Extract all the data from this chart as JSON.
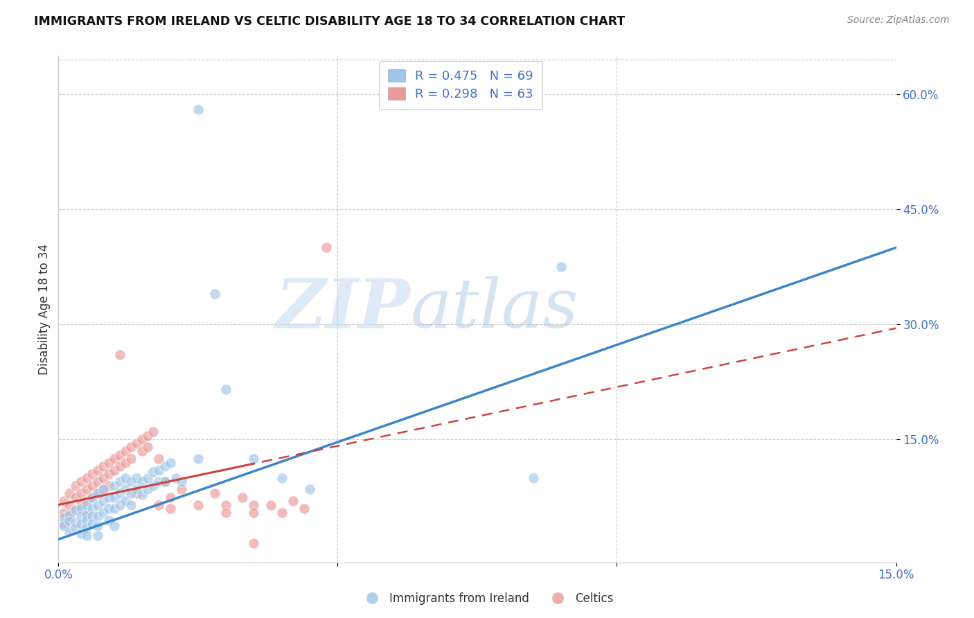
{
  "title": "IMMIGRANTS FROM IRELAND VS CELTIC DISABILITY AGE 18 TO 34 CORRELATION CHART",
  "source": "Source: ZipAtlas.com",
  "ylabel": "Disability Age 18 to 34",
  "xlim": [
    0.0,
    0.15
  ],
  "ylim": [
    -0.01,
    0.65
  ],
  "x_ticks": [
    0.0,
    0.05,
    0.1,
    0.15
  ],
  "x_tick_labels": [
    "0.0%",
    "",
    "",
    "15.0%"
  ],
  "y_ticks": [
    0.15,
    0.3,
    0.45,
    0.6
  ],
  "y_tick_labels": [
    "15.0%",
    "30.0%",
    "45.0%",
    "60.0%"
  ],
  "blue_color": "#9fc5e8",
  "pink_color": "#ea9999",
  "blue_line_color": "#3d85c8",
  "pink_line_color": "#cc4444",
  "r_blue": 0.475,
  "n_blue": 69,
  "r_pink": 0.298,
  "n_pink": 63,
  "legend_label_blue": "Immigrants from Ireland",
  "legend_label_pink": "Celtics",
  "watermark_zip": "ZIP",
  "watermark_atlas": "atlas",
  "blue_line": [
    [
      0.0,
      0.02
    ],
    [
      0.15,
      0.4
    ]
  ],
  "pink_line": [
    [
      0.0,
      0.065
    ],
    [
      0.15,
      0.295
    ]
  ],
  "blue_scatter": [
    [
      0.001,
      0.048
    ],
    [
      0.001,
      0.038
    ],
    [
      0.002,
      0.052
    ],
    [
      0.002,
      0.044
    ],
    [
      0.002,
      0.03
    ],
    [
      0.003,
      0.058
    ],
    [
      0.003,
      0.042
    ],
    [
      0.003,
      0.035
    ],
    [
      0.004,
      0.06
    ],
    [
      0.004,
      0.05
    ],
    [
      0.004,
      0.04
    ],
    [
      0.004,
      0.028
    ],
    [
      0.005,
      0.065
    ],
    [
      0.005,
      0.052
    ],
    [
      0.005,
      0.045
    ],
    [
      0.005,
      0.035
    ],
    [
      0.005,
      0.025
    ],
    [
      0.006,
      0.075
    ],
    [
      0.006,
      0.06
    ],
    [
      0.006,
      0.05
    ],
    [
      0.006,
      0.04
    ],
    [
      0.007,
      0.08
    ],
    [
      0.007,
      0.065
    ],
    [
      0.007,
      0.05
    ],
    [
      0.007,
      0.038
    ],
    [
      0.007,
      0.025
    ],
    [
      0.008,
      0.085
    ],
    [
      0.008,
      0.07
    ],
    [
      0.008,
      0.055
    ],
    [
      0.009,
      0.075
    ],
    [
      0.009,
      0.06
    ],
    [
      0.009,
      0.045
    ],
    [
      0.01,
      0.09
    ],
    [
      0.01,
      0.075
    ],
    [
      0.01,
      0.06
    ],
    [
      0.01,
      0.038
    ],
    [
      0.011,
      0.095
    ],
    [
      0.011,
      0.08
    ],
    [
      0.011,
      0.065
    ],
    [
      0.012,
      0.1
    ],
    [
      0.012,
      0.085
    ],
    [
      0.012,
      0.07
    ],
    [
      0.013,
      0.095
    ],
    [
      0.013,
      0.08
    ],
    [
      0.013,
      0.065
    ],
    [
      0.014,
      0.1
    ],
    [
      0.014,
      0.085
    ],
    [
      0.015,
      0.095
    ],
    [
      0.015,
      0.078
    ],
    [
      0.016,
      0.1
    ],
    [
      0.016,
      0.085
    ],
    [
      0.017,
      0.108
    ],
    [
      0.017,
      0.09
    ],
    [
      0.018,
      0.11
    ],
    [
      0.018,
      0.095
    ],
    [
      0.019,
      0.115
    ],
    [
      0.019,
      0.095
    ],
    [
      0.02,
      0.12
    ],
    [
      0.021,
      0.1
    ],
    [
      0.022,
      0.095
    ],
    [
      0.025,
      0.58
    ],
    [
      0.025,
      0.125
    ],
    [
      0.028,
      0.34
    ],
    [
      0.03,
      0.215
    ],
    [
      0.035,
      0.125
    ],
    [
      0.04,
      0.1
    ],
    [
      0.045,
      0.085
    ],
    [
      0.085,
      0.1
    ],
    [
      0.09,
      0.375
    ]
  ],
  "pink_scatter": [
    [
      0.001,
      0.07
    ],
    [
      0.001,
      0.055
    ],
    [
      0.001,
      0.04
    ],
    [
      0.002,
      0.08
    ],
    [
      0.002,
      0.065
    ],
    [
      0.002,
      0.05
    ],
    [
      0.003,
      0.09
    ],
    [
      0.003,
      0.075
    ],
    [
      0.003,
      0.058
    ],
    [
      0.004,
      0.095
    ],
    [
      0.004,
      0.08
    ],
    [
      0.004,
      0.065
    ],
    [
      0.005,
      0.1
    ],
    [
      0.005,
      0.085
    ],
    [
      0.005,
      0.07
    ],
    [
      0.005,
      0.055
    ],
    [
      0.006,
      0.105
    ],
    [
      0.006,
      0.09
    ],
    [
      0.006,
      0.075
    ],
    [
      0.007,
      0.11
    ],
    [
      0.007,
      0.095
    ],
    [
      0.007,
      0.08
    ],
    [
      0.008,
      0.115
    ],
    [
      0.008,
      0.1
    ],
    [
      0.008,
      0.085
    ],
    [
      0.009,
      0.12
    ],
    [
      0.009,
      0.105
    ],
    [
      0.009,
      0.09
    ],
    [
      0.01,
      0.125
    ],
    [
      0.01,
      0.11
    ],
    [
      0.011,
      0.13
    ],
    [
      0.011,
      0.115
    ],
    [
      0.011,
      0.26
    ],
    [
      0.012,
      0.135
    ],
    [
      0.012,
      0.12
    ],
    [
      0.013,
      0.14
    ],
    [
      0.013,
      0.125
    ],
    [
      0.014,
      0.145
    ],
    [
      0.014,
      0.08
    ],
    [
      0.015,
      0.15
    ],
    [
      0.015,
      0.135
    ],
    [
      0.016,
      0.155
    ],
    [
      0.016,
      0.14
    ],
    [
      0.017,
      0.16
    ],
    [
      0.018,
      0.125
    ],
    [
      0.018,
      0.065
    ],
    [
      0.019,
      0.095
    ],
    [
      0.02,
      0.075
    ],
    [
      0.02,
      0.06
    ],
    [
      0.022,
      0.085
    ],
    [
      0.025,
      0.065
    ],
    [
      0.028,
      0.08
    ],
    [
      0.03,
      0.065
    ],
    [
      0.03,
      0.055
    ],
    [
      0.033,
      0.075
    ],
    [
      0.035,
      0.065
    ],
    [
      0.035,
      0.055
    ],
    [
      0.038,
      0.065
    ],
    [
      0.04,
      0.055
    ],
    [
      0.042,
      0.07
    ],
    [
      0.044,
      0.06
    ],
    [
      0.048,
      0.4
    ],
    [
      0.035,
      0.015
    ]
  ]
}
